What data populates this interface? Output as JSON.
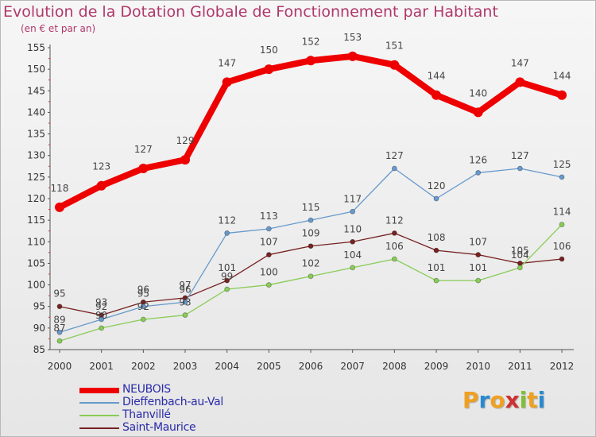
{
  "title": "Evolution de la Dotation Globale de Fonctionnement par Habitant",
  "subtitle": "(en € et par an)",
  "logo": {
    "letters": [
      "P",
      "r",
      "o",
      "x",
      "i",
      "t",
      "i"
    ],
    "colors": [
      "#f0a020",
      "#2a8ad0",
      "#f0a020",
      "#d03030",
      "#80c030",
      "#f0a020",
      "#2a8ad0"
    ]
  },
  "chart_data": {
    "type": "line",
    "x": [
      "2000",
      "2001",
      "2002",
      "2003",
      "2004",
      "2005",
      "2006",
      "2007",
      "2008",
      "2009",
      "2010",
      "2011",
      "2012"
    ],
    "ylim": [
      85,
      155
    ],
    "yticks": [
      "85",
      "90",
      "95",
      "100",
      "105",
      "110",
      "115",
      "120",
      "125",
      "130",
      "135",
      "140",
      "145",
      "150",
      "155"
    ],
    "legend_position": "bottom-left",
    "grid": false,
    "series": [
      {
        "name": "NEUBOIS",
        "color": "#ee0000",
        "values": [
          118,
          123,
          127,
          129,
          147,
          150,
          152,
          153,
          151,
          144,
          140,
          147,
          144
        ],
        "labels": [
          "118",
          "123",
          "127",
          "129",
          "147",
          "150",
          "152",
          "153",
          "151",
          "144",
          "140",
          "147",
          "144"
        ]
      },
      {
        "name": "Dieffenbach-au-Val",
        "color": "#6699cc",
        "values": [
          89,
          92,
          95,
          96,
          112,
          113,
          115,
          117,
          127,
          120,
          126,
          127,
          125
        ],
        "labels": [
          "89",
          "92",
          "95",
          "96",
          "112",
          "113",
          "115",
          "117",
          "127",
          "120",
          "126",
          "127",
          "125"
        ]
      },
      {
        "name": "Thanvillé",
        "color": "#88cc55",
        "values": [
          87,
          90,
          92,
          93,
          99,
          100,
          102,
          104,
          106,
          101,
          101,
          104,
          114
        ],
        "labels": [
          "87",
          "90",
          "92",
          "93",
          "99",
          "100",
          "102",
          "104",
          "106",
          "101",
          "101",
          "104",
          "114"
        ]
      },
      {
        "name": "Saint-Maurice",
        "color": "#772222",
        "values": [
          95,
          93,
          96,
          97,
          101,
          107,
          109,
          110,
          112,
          108,
          107,
          105,
          106
        ],
        "labels": [
          "95",
          "93",
          "96",
          "97",
          "101",
          "107",
          "109",
          "110",
          "112",
          "108",
          "107",
          "105",
          "106"
        ]
      }
    ]
  }
}
